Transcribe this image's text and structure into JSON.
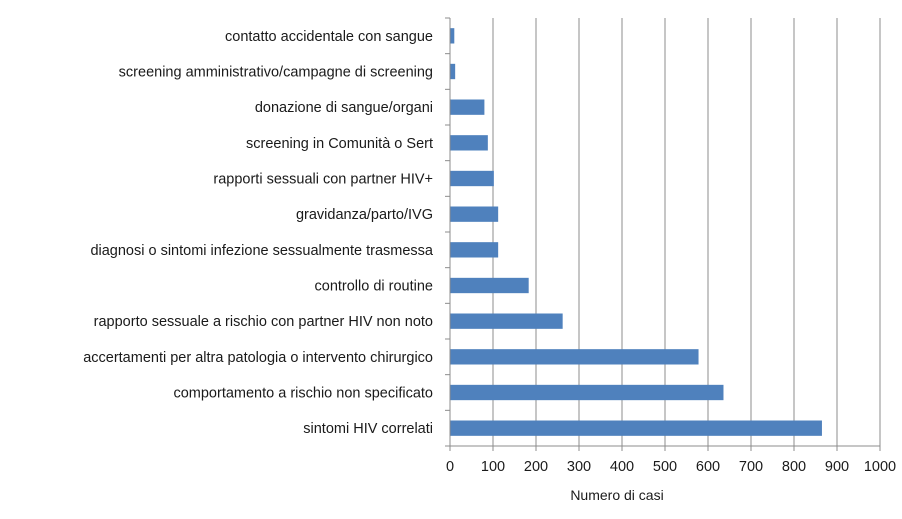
{
  "chart_data": {
    "type": "bar",
    "orientation": "horizontal",
    "categories": [
      "contatto accidentale con sangue",
      "screening amministrativo/campagne di screening",
      "donazione di sangue/organi",
      "screening in Comunità o Sert",
      "rapporti sessuali con partner HIV+",
      "gravidanza/parto/IVG",
      "diagnosi o sintomi infezione sessualmente trasmessa",
      "controllo di routine",
      "rapporto sessuale a rischio con partner HIV non noto",
      "accertamenti per altra patologia o intervento chirurgico",
      "comportamento a rischio non specificato",
      "sintomi HIV correlati"
    ],
    "values": [
      10,
      12,
      80,
      88,
      102,
      112,
      112,
      183,
      262,
      578,
      636,
      865
    ],
    "title": "",
    "xlabel": "Numero di casi",
    "ylabel": "",
    "xlim": [
      0,
      1000
    ],
    "xticks": [
      0,
      100,
      200,
      300,
      400,
      500,
      600,
      700,
      800,
      900,
      1000
    ],
    "grid": "vertical",
    "legend": "none",
    "bar_color": "#4f81bd",
    "grid_color": "#8c8c8c"
  }
}
